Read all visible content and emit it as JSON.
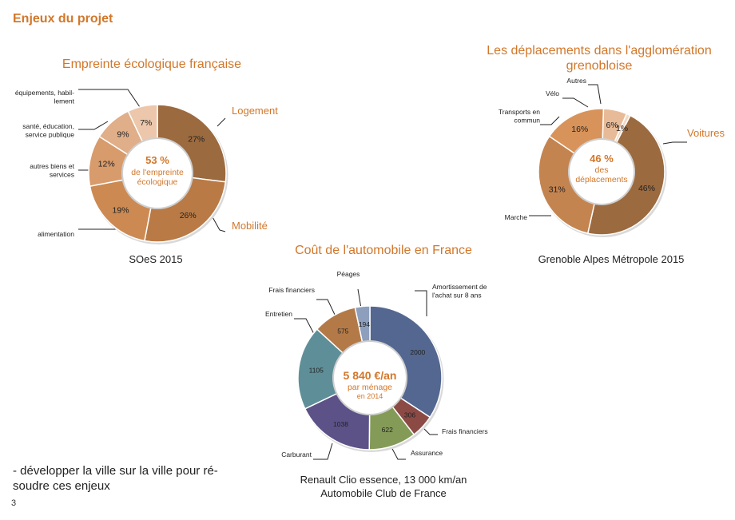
{
  "page": {
    "section_title": "Enjeux du projet",
    "bottom_text": "- développer la ville sur la ville pour ré-soudre ces enjeux",
    "page_number": "3"
  },
  "charts": {
    "footprint": {
      "title": "Empreinte écologique française",
      "source": "SOeS 2015",
      "center_main": "53 %",
      "center_sub1": "de l'empreinte",
      "center_sub2": "écologique",
      "callout_logement": "Logement",
      "callout_mobilite": "Mobilité"
    },
    "travel": {
      "title_line1": "Les déplacements dans l'agglomération",
      "title_line2": "grenobloise",
      "source": "Grenoble Alpes Métropole 2015",
      "center_main": "46 %",
      "center_sub1": "des",
      "center_sub2": "déplacements",
      "callout_voitures": "Voitures"
    },
    "car_cost": {
      "title": "Coût de l'automobile en France",
      "source_line1": "Renault Clio essence, 13 000 km/an",
      "source_line2": "Automobile Club de France",
      "center_main": "5 840 €/an",
      "center_sub1": "par ménage",
      "center_sub2": "en 2014"
    }
  },
  "chart_data": [
    {
      "type": "pie",
      "title": "Empreinte écologique française",
      "categories": [
        "Logement",
        "Mobilité",
        "alimentation",
        "autres biens et services",
        "santé, éducation, service publique",
        "équipements, habil-lement"
      ],
      "values": [
        27,
        26,
        19,
        12,
        9,
        7
      ],
      "unit": "%",
      "colors": [
        "#9c6a3f",
        "#b97a46",
        "#cc8a52",
        "#d89b6c",
        "#e0ae88",
        "#ecc7ab"
      ]
    },
    {
      "type": "pie",
      "title": "Les déplacements dans l'agglomération grenobloise",
      "categories": [
        "Voitures",
        "Marche",
        "Transports en commun",
        "Vélo",
        "Autres"
      ],
      "values": [
        46,
        31,
        16,
        6,
        1
      ],
      "unit": "%",
      "colors": [
        "#9c6a3f",
        "#c48450",
        "#d8935a",
        "#e7bb98",
        "#f1d9c6"
      ]
    },
    {
      "type": "pie",
      "title": "Coût de l'automobile en France",
      "categories": [
        "Amortissement de l'achat sur 8 ans",
        "Frais financiers",
        "Assurance",
        "Carburant",
        "Entretien",
        "Frais financiers",
        "Péages"
      ],
      "values": [
        2000,
        306,
        622,
        1038,
        1105,
        575,
        194
      ],
      "colors": [
        "#546790",
        "#8c4a45",
        "#849b57",
        "#5c5288",
        "#5e8f98",
        "#b37a48",
        "#8d9fbd"
      ]
    }
  ]
}
